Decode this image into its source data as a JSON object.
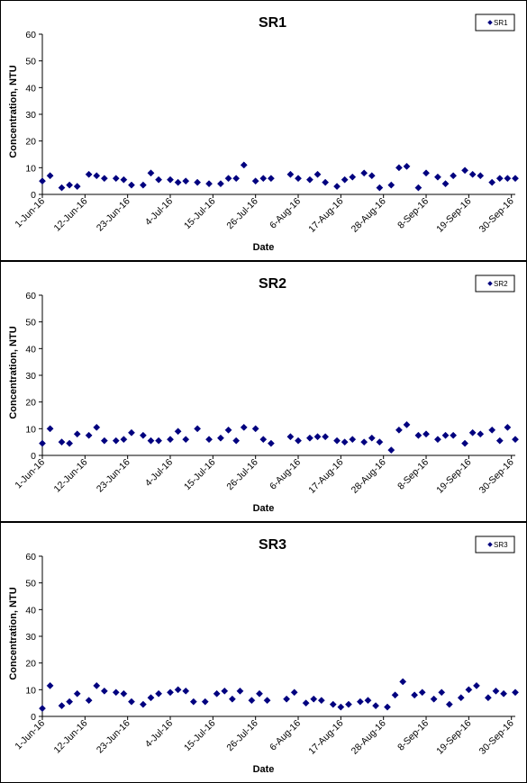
{
  "colors": {
    "marker": "#00007f",
    "axis": "#000000",
    "background": "#ffffff"
  },
  "chart_data": [
    {
      "type": "scatter",
      "title": "SR1",
      "xlabel": "Date",
      "ylabel": "Concentration, NTU",
      "ylim": [
        0,
        60
      ],
      "yticks": [
        "0",
        "10",
        "20",
        "30",
        "40",
        "50",
        "60"
      ],
      "xlim": [
        "1-Jun-16",
        "1-Oct-16"
      ],
      "xticks": [
        "1-Jun-16",
        "12-Jun-16",
        "23-Jun-16",
        "4-Jul-16",
        "15-Jul-16",
        "26-Jul-16",
        "6-Aug-16",
        "17-Aug-16",
        "28-Aug-16",
        "8-Sep-16",
        "19-Sep-16",
        "30-Sep-16"
      ],
      "legend": "top-right",
      "grid": false,
      "series": [
        {
          "name": "SR1",
          "x": [
            "1-Jun-16",
            "3-Jun-16",
            "6-Jun-16",
            "8-Jun-16",
            "10-Jun-16",
            "13-Jun-16",
            "15-Jun-16",
            "17-Jun-16",
            "20-Jun-16",
            "22-Jun-16",
            "24-Jun-16",
            "27-Jun-16",
            "29-Jun-16",
            "1-Jul-16",
            "4-Jul-16",
            "6-Jul-16",
            "8-Jul-16",
            "11-Jul-16",
            "14-Jul-16",
            "17-Jul-16",
            "19-Jul-16",
            "21-Jul-16",
            "23-Jul-16",
            "26-Jul-16",
            "28-Jul-16",
            "30-Jul-16",
            "4-Aug-16",
            "6-Aug-16",
            "9-Aug-16",
            "11-Aug-16",
            "13-Aug-16",
            "16-Aug-16",
            "18-Aug-16",
            "20-Aug-16",
            "23-Aug-16",
            "25-Aug-16",
            "27-Aug-16",
            "30-Aug-16",
            "1-Sep-16",
            "3-Sep-16",
            "6-Sep-16",
            "8-Sep-16",
            "11-Sep-16",
            "13-Sep-16",
            "15-Sep-16",
            "18-Sep-16",
            "20-Sep-16",
            "22-Sep-16",
            "25-Sep-16",
            "27-Sep-16",
            "29-Sep-16",
            "1-Oct-16"
          ],
          "values": [
            5,
            7,
            2.5,
            3.5,
            3,
            7.5,
            7,
            6,
            6,
            5.5,
            3.5,
            3.5,
            8,
            5.5,
            5.5,
            4.5,
            5,
            4.5,
            4,
            4,
            6,
            6,
            11,
            5,
            6,
            6,
            7.5,
            6,
            5.5,
            7.5,
            4.5,
            3,
            5.5,
            6.5,
            8,
            7,
            2.5,
            3.5,
            10,
            10.5,
            2.5,
            8,
            6.5,
            4,
            7,
            9,
            7.5,
            7,
            4.5,
            6,
            6,
            6
          ]
        }
      ]
    },
    {
      "type": "scatter",
      "title": "SR2",
      "xlabel": "Date",
      "ylabel": "Concentration, NTU",
      "ylim": [
        0,
        60
      ],
      "yticks": [
        "0",
        "10",
        "20",
        "30",
        "40",
        "50",
        "60"
      ],
      "xlim": [
        "1-Jun-16",
        "1-Oct-16"
      ],
      "xticks": [
        "1-Jun-16",
        "12-Jun-16",
        "23-Jun-16",
        "4-Jul-16",
        "15-Jul-16",
        "26-Jul-16",
        "6-Aug-16",
        "17-Aug-16",
        "28-Aug-16",
        "8-Sep-16",
        "19-Sep-16",
        "30-Sep-16"
      ],
      "legend": "top-right",
      "grid": false,
      "series": [
        {
          "name": "SR2",
          "x": [
            "1-Jun-16",
            "3-Jun-16",
            "6-Jun-16",
            "8-Jun-16",
            "10-Jun-16",
            "13-Jun-16",
            "15-Jun-16",
            "17-Jun-16",
            "20-Jun-16",
            "22-Jun-16",
            "24-Jun-16",
            "27-Jun-16",
            "29-Jun-16",
            "1-Jul-16",
            "4-Jul-16",
            "6-Jul-16",
            "8-Jul-16",
            "11-Jul-16",
            "14-Jul-16",
            "17-Jul-16",
            "19-Jul-16",
            "21-Jul-16",
            "23-Jul-16",
            "26-Jul-16",
            "28-Jul-16",
            "30-Jul-16",
            "4-Aug-16",
            "6-Aug-16",
            "9-Aug-16",
            "11-Aug-16",
            "13-Aug-16",
            "16-Aug-16",
            "18-Aug-16",
            "20-Aug-16",
            "23-Aug-16",
            "25-Aug-16",
            "27-Aug-16",
            "30-Aug-16",
            "1-Sep-16",
            "3-Sep-16",
            "6-Sep-16",
            "8-Sep-16",
            "11-Sep-16",
            "13-Sep-16",
            "15-Sep-16",
            "18-Sep-16",
            "20-Sep-16",
            "22-Sep-16",
            "25-Sep-16",
            "27-Sep-16",
            "29-Sep-16",
            "1-Oct-16"
          ],
          "values": [
            4.5,
            10,
            5,
            4.5,
            8,
            7.5,
            10.5,
            5.5,
            5.5,
            6,
            8.5,
            7.5,
            5.5,
            5.5,
            6,
            9,
            6,
            10,
            6,
            6.5,
            9.5,
            5.5,
            10.5,
            10,
            6,
            4.5,
            7,
            5.5,
            6.5,
            7,
            7,
            5.5,
            5,
            6,
            5,
            6.5,
            5,
            2,
            9.5,
            11.5,
            7.5,
            8,
            6,
            7.5,
            7.5,
            4.5,
            8.5,
            8,
            9.5,
            5.5,
            10.5,
            6
          ]
        }
      ]
    },
    {
      "type": "scatter",
      "title": "SR3",
      "xlabel": "Date",
      "ylabel": "Concentration, NTU",
      "ylim": [
        0,
        60
      ],
      "yticks": [
        "0",
        "10",
        "20",
        "30",
        "40",
        "50",
        "60"
      ],
      "xlim": [
        "1-Jun-16",
        "1-Oct-16"
      ],
      "xticks": [
        "1-Jun-16",
        "12-Jun-16",
        "23-Jun-16",
        "4-Jul-16",
        "15-Jul-16",
        "26-Jul-16",
        "6-Aug-16",
        "17-Aug-16",
        "28-Aug-16",
        "8-Sep-16",
        "19-Sep-16",
        "30-Sep-16"
      ],
      "legend": "top-right",
      "grid": false,
      "series": [
        {
          "name": "SR3",
          "x": [
            "1-Jun-16",
            "3-Jun-16",
            "6-Jun-16",
            "8-Jun-16",
            "10-Jun-16",
            "13-Jun-16",
            "15-Jun-16",
            "17-Jun-16",
            "20-Jun-16",
            "22-Jun-16",
            "24-Jun-16",
            "27-Jun-16",
            "29-Jun-16",
            "1-Jul-16",
            "4-Jul-16",
            "6-Jul-16",
            "8-Jul-16",
            "10-Jul-16",
            "13-Jul-16",
            "16-Jul-16",
            "18-Jul-16",
            "20-Jul-16",
            "22-Jul-16",
            "25-Jul-16",
            "27-Jul-16",
            "29-Jul-16",
            "3-Aug-16",
            "5-Aug-16",
            "8-Aug-16",
            "10-Aug-16",
            "12-Aug-16",
            "15-Aug-16",
            "17-Aug-16",
            "19-Aug-16",
            "22-Aug-16",
            "24-Aug-16",
            "26-Aug-16",
            "29-Aug-16",
            "31-Aug-16",
            "2-Sep-16",
            "5-Sep-16",
            "7-Sep-16",
            "10-Sep-16",
            "12-Sep-16",
            "14-Sep-16",
            "17-Sep-16",
            "19-Sep-16",
            "21-Sep-16",
            "24-Sep-16",
            "26-Sep-16",
            "28-Sep-16",
            "1-Oct-16"
          ],
          "values": [
            3,
            11.5,
            4,
            5.5,
            8.5,
            6,
            11.5,
            9.5,
            9,
            8.5,
            5.5,
            4.5,
            7,
            8.5,
            9,
            10,
            9.5,
            5.5,
            5.5,
            8.5,
            9.5,
            6.5,
            9.5,
            6,
            8.5,
            6,
            6.5,
            9,
            5,
            6.5,
            6,
            4.5,
            3.5,
            4.5,
            5.5,
            6,
            4,
            3.5,
            8,
            13,
            8,
            9,
            6.5,
            9,
            4.5,
            7,
            10,
            11.5,
            7,
            9.5,
            8.5,
            9
          ]
        }
      ]
    }
  ]
}
